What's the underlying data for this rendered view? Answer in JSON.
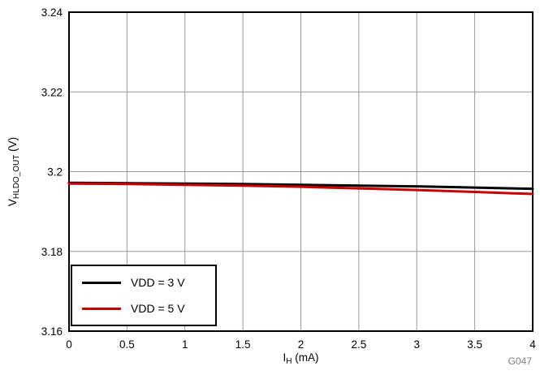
{
  "chart_data": {
    "type": "line",
    "title": "",
    "xlabel": {
      "pre": "I",
      "sub": "H",
      "post": " (mA)"
    },
    "ylabel": {
      "pre": "V",
      "sub": "HLDO_OUT",
      "post": " (V)"
    },
    "xlim": [
      0,
      4
    ],
    "ylim": [
      3.16,
      3.24
    ],
    "xticks": [
      0,
      0.5,
      1,
      1.5,
      2,
      2.5,
      3,
      3.5,
      4
    ],
    "xtick_labels": [
      "0",
      "0.5",
      "1",
      "1.5",
      "2",
      "2.5",
      "3",
      "3.5",
      "4"
    ],
    "yticks": [
      3.16,
      3.18,
      3.2,
      3.22,
      3.24
    ],
    "ytick_labels": [
      "3.16",
      "3.18",
      "3.2",
      "3.22",
      "3.24"
    ],
    "grid": true,
    "x": [
      0,
      0.5,
      1,
      1.5,
      2,
      2.5,
      3,
      3.5,
      4
    ],
    "series": [
      {
        "name": "VDD = 3 V",
        "color": "#000000",
        "values": [
          3.1972,
          3.1971,
          3.197,
          3.1969,
          3.1967,
          3.1965,
          3.1963,
          3.196,
          3.1957
        ]
      },
      {
        "name": "VDD = 5 V",
        "color": "#cc0000",
        "values": [
          3.197,
          3.1969,
          3.1967,
          3.1965,
          3.1962,
          3.1958,
          3.1954,
          3.1949,
          3.1944
        ]
      }
    ],
    "legend_position": "lower left",
    "watermark": "G047",
    "colors": {
      "grid": "#999999",
      "axis": "#000000",
      "watermark": "#808080",
      "tick_text": "#000000"
    }
  }
}
